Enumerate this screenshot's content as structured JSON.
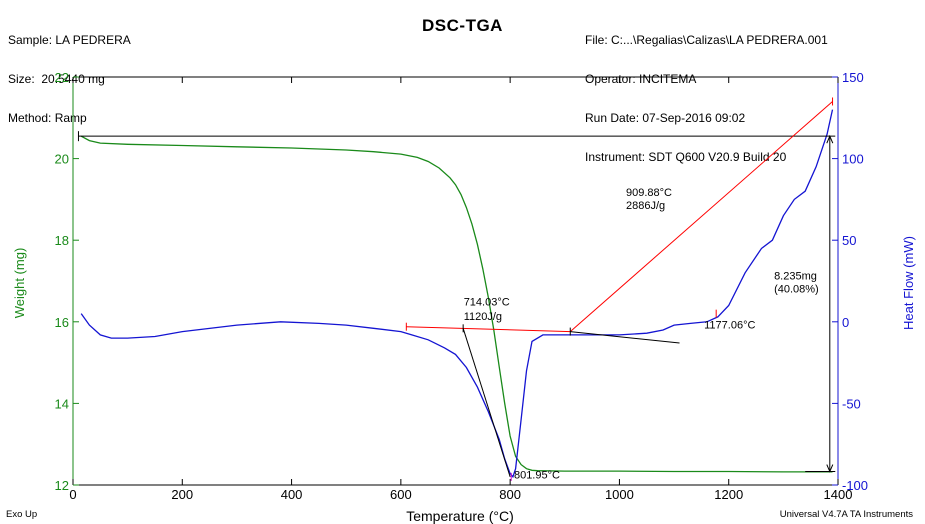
{
  "header_left": [
    {
      "label": "Sample:",
      "value": "LA PEDRERA"
    },
    {
      "label": "Size:",
      "value": "20.5440 mg"
    },
    {
      "label": "Method:",
      "value": "Ramp"
    }
  ],
  "header_right": [
    {
      "label": "File:",
      "value": "C:...\\Regalias\\Calizas\\LA PEDRERA.001"
    },
    {
      "label": "Operator:",
      "value": "INCITEMA"
    },
    {
      "label": "Run Date:",
      "value": "07-Sep-2016 09:02"
    },
    {
      "label": "Instrument:",
      "value": "SDT Q600 V20.9 Build 20"
    }
  ],
  "footer": {
    "left": "Exo Up",
    "right": "Universal V4.7A TA Instruments"
  },
  "colors": {
    "weight": "#1a8a1a",
    "heatflow": "#1414d2",
    "annotation": "#ff0000",
    "black": "#000000"
  },
  "chart_data": {
    "type": "line",
    "title": "DSC-TGA",
    "xlabel": "Temperature (°C)",
    "ylabel_left": "Weight (mg)",
    "ylabel_right": "Heat Flow (mW)",
    "xlim": [
      0,
      1400
    ],
    "ylim_left": [
      12,
      22
    ],
    "ylim_right": [
      -100,
      150
    ],
    "x_ticks": [
      0,
      200,
      400,
      600,
      800,
      1000,
      1200,
      1400
    ],
    "y_ticks_left": [
      12,
      14,
      16,
      18,
      20,
      22
    ],
    "y_ticks_right": [
      -100,
      -50,
      0,
      50,
      100,
      150
    ],
    "series": [
      {
        "axis": "left",
        "color": "#1a8a1a",
        "x": [
          15,
          30,
          50,
          100,
          200,
          300,
          400,
          500,
          550,
          600,
          630,
          650,
          670,
          690,
          700,
          710,
          720,
          730,
          740,
          750,
          760,
          770,
          780,
          790,
          800,
          810,
          820,
          830,
          840,
          850,
          900,
          1000,
          1100,
          1200,
          1300,
          1390
        ],
        "values": [
          20.55,
          20.44,
          20.38,
          20.35,
          20.32,
          20.29,
          20.26,
          20.21,
          20.17,
          20.11,
          20.03,
          19.93,
          19.77,
          19.53,
          19.36,
          19.12,
          18.8,
          18.4,
          17.9,
          17.3,
          16.6,
          15.8,
          14.9,
          14.0,
          13.2,
          12.7,
          12.5,
          12.4,
          12.36,
          12.35,
          12.34,
          12.34,
          12.33,
          12.33,
          12.32,
          12.32
        ]
      },
      {
        "axis": "right",
        "color": "#1414d2",
        "x": [
          15,
          30,
          50,
          70,
          100,
          150,
          200,
          300,
          380,
          450,
          500,
          550,
          600,
          620,
          650,
          680,
          700,
          720,
          740,
          760,
          780,
          790,
          800,
          805,
          810,
          820,
          830,
          840,
          860,
          900,
          950,
          1000,
          1050,
          1080,
          1100,
          1130,
          1160,
          1180,
          1200,
          1230,
          1260,
          1280,
          1300,
          1320,
          1340,
          1360,
          1380,
          1390
        ],
        "values": [
          5,
          -2,
          -8,
          -10,
          -10,
          -9,
          -6,
          -2,
          0,
          -1,
          -2,
          -4,
          -6,
          -8,
          -11,
          -16,
          -20,
          -28,
          -40,
          -55,
          -72,
          -84,
          -93,
          -95,
          -90,
          -60,
          -30,
          -12,
          -8,
          -8,
          -8,
          -8,
          -7,
          -5,
          -2,
          -1,
          0,
          3,
          10,
          30,
          45,
          50,
          65,
          75,
          80,
          95,
          115,
          130
        ]
      }
    ],
    "annotations": [
      {
        "label": "714.03°C",
        "label2": "1120J/g"
      },
      {
        "label": "801.95°C"
      },
      {
        "label": "909.88°C",
        "label2": "2886J/g"
      },
      {
        "label": "1177.06°C"
      },
      {
        "label": "8.235mg",
        "label2": "(40.08%)"
      }
    ]
  }
}
